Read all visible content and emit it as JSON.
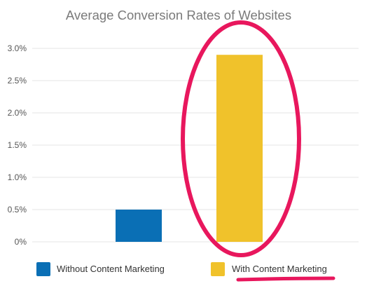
{
  "chart_data": {
    "type": "bar",
    "title": "Average Conversion Rates of Websites",
    "xlabel": "",
    "ylabel": "",
    "categories": [
      "Without Content Marketing",
      "With Content Marketing"
    ],
    "values": [
      0.5,
      2.9
    ],
    "colors": [
      "#0a6fb5",
      "#f0c22b"
    ],
    "ylim": [
      0,
      3.0
    ],
    "yticks": [
      {
        "value": 0,
        "label": "0%"
      },
      {
        "value": 0.5,
        "label": "0.5%"
      },
      {
        "value": 1.0,
        "label": "1.0%"
      },
      {
        "value": 1.5,
        "label": "1.5%"
      },
      {
        "value": 2.0,
        "label": "2.0%"
      },
      {
        "value": 2.5,
        "label": "2.5%"
      },
      {
        "value": 3.0,
        "label": "3.0%"
      }
    ],
    "grid": true,
    "legend": [
      {
        "label": "Without Content Marketing",
        "color": "#0a6fb5"
      },
      {
        "label": "With Content Marketing",
        "color": "#f0c22b"
      }
    ],
    "legend_position": "bottom"
  },
  "annotation": {
    "highlight_color": "#e8175d",
    "highlighted_series": "With Content Marketing"
  }
}
